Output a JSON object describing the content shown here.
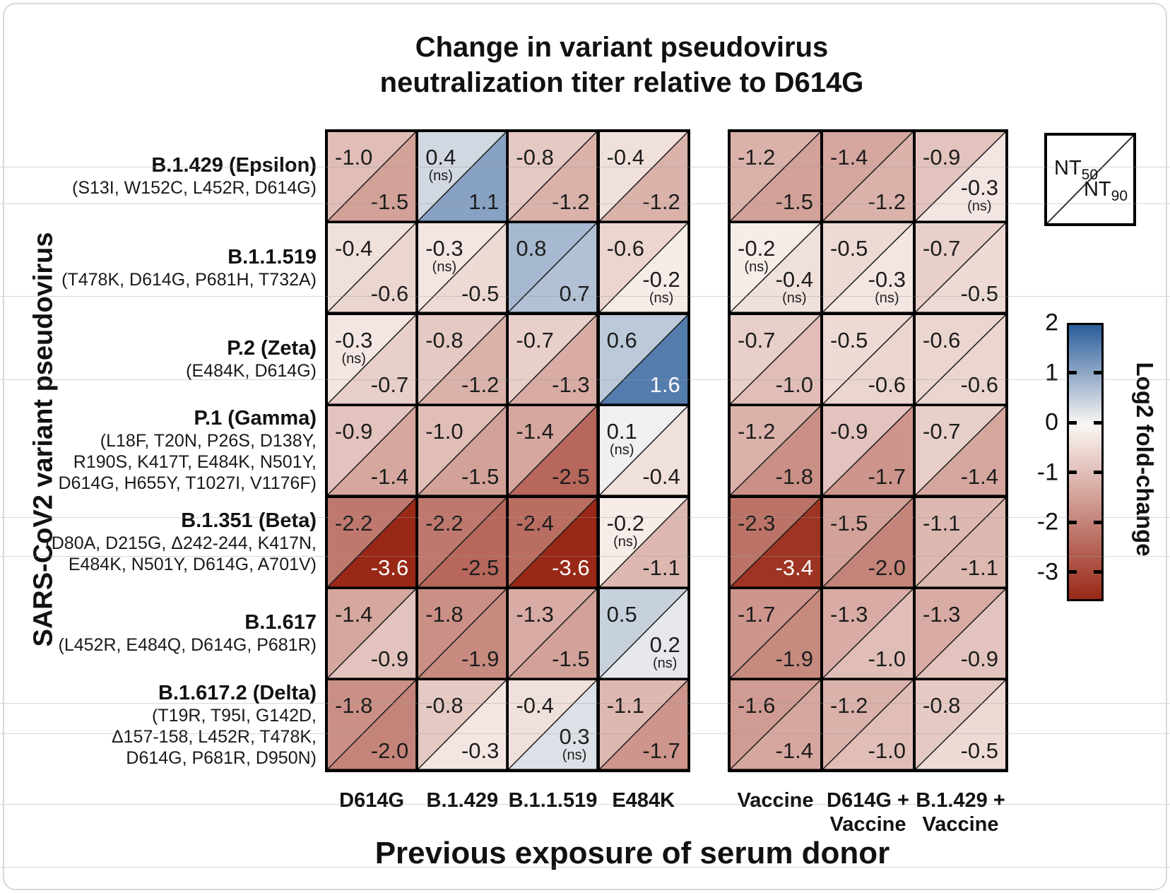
{
  "title": {
    "line1": "Change in variant pseudovirus",
    "line2": "neutralization titer relative to D614G"
  },
  "axes": {
    "y_label": "SARS-CoV2 variant pseudovirus",
    "x_label": "Previous exposure of serum donor"
  },
  "cell_legend": {
    "top": {
      "prefix": "NT",
      "sub": "50"
    },
    "bottom": {
      "prefix": "NT",
      "sub": "90"
    }
  },
  "colorbar": {
    "label": "Log2 fold-change",
    "ticks": [
      "2",
      "1",
      "0",
      "-1",
      "-2",
      "-3"
    ],
    "vmax": 2,
    "vmin": -3.5,
    "color_positive": "#2a5d9b",
    "color_mid": "#fbf7f4",
    "color_negative": "#992817"
  },
  "chart_data": {
    "type": "heatmap",
    "cell_semantics": {
      "upper_left": "NT50 log2 fold-change",
      "lower_right": "NT90 log2 fold-change",
      "ns": "not significant"
    },
    "columns": [
      {
        "lines": [
          "D614G"
        ]
      },
      {
        "lines": [
          "B.1.429"
        ]
      },
      {
        "lines": [
          "B.1.1.519"
        ]
      },
      {
        "lines": [
          "E484K"
        ]
      },
      {
        "lines": [
          "Vaccine"
        ]
      },
      {
        "lines": [
          "D614G +",
          "Vaccine"
        ]
      },
      {
        "lines": [
          "B.1.429 +",
          "Vaccine"
        ]
      }
    ],
    "rows": [
      {
        "variant": "B.1.429 (Epsilon)",
        "mutations": [
          "(S13I, W152C, L452R, D614G)"
        ],
        "cells": [
          {
            "nt50": -1.0,
            "nt90": -1.5
          },
          {
            "nt50": 0.4,
            "nt50_ns": true,
            "nt90": 1.1
          },
          {
            "nt50": -0.8,
            "nt90": -1.2
          },
          {
            "nt50": -0.4,
            "nt90": -1.2
          },
          {
            "nt50": -1.2,
            "nt90": -1.5
          },
          {
            "nt50": -1.4,
            "nt90": -1.2
          },
          {
            "nt50": -0.9,
            "nt90": -0.3,
            "nt90_ns": true
          }
        ]
      },
      {
        "variant": "B.1.1.519",
        "mutations": [
          "(T478K, D614G, P681H, T732A)"
        ],
        "cells": [
          {
            "nt50": -0.4,
            "nt90": -0.6
          },
          {
            "nt50": -0.3,
            "nt50_ns": true,
            "nt90": -0.5
          },
          {
            "nt50": 0.8,
            "nt90": 0.7
          },
          {
            "nt50": -0.6,
            "nt90": -0.2,
            "nt90_ns": true
          },
          {
            "nt50": -0.2,
            "nt50_ns": true,
            "nt90": -0.4,
            "nt90_ns": true
          },
          {
            "nt50": -0.5,
            "nt90": -0.3,
            "nt90_ns": true
          },
          {
            "nt50": -0.7,
            "nt90": -0.5
          }
        ]
      },
      {
        "variant": "P.2 (Zeta)",
        "mutations": [
          "(E484K, D614G)"
        ],
        "cells": [
          {
            "nt50": -0.3,
            "nt50_ns": true,
            "nt90": -0.7
          },
          {
            "nt50": -0.8,
            "nt90": -1.2
          },
          {
            "nt50": -0.7,
            "nt90": -1.3
          },
          {
            "nt50": 0.6,
            "nt90": 1.6
          },
          {
            "nt50": -0.7,
            "nt90": -1.0
          },
          {
            "nt50": -0.5,
            "nt90": -0.6
          },
          {
            "nt50": -0.6,
            "nt90": -0.6
          }
        ]
      },
      {
        "variant": "P.1 (Gamma)",
        "mutations": [
          "(L18F, T20N, P26S, D138Y,",
          "R190S, K417T, E484K, N501Y,",
          "D614G, H655Y, T1027I, V1176F)"
        ],
        "cells": [
          {
            "nt50": -0.9,
            "nt90": -1.4
          },
          {
            "nt50": -1.0,
            "nt90": -1.5
          },
          {
            "nt50": -1.4,
            "nt90": -2.5
          },
          {
            "nt50": 0.1,
            "nt50_ns": true,
            "nt90": -0.4
          },
          {
            "nt50": -1.2,
            "nt90": -1.8
          },
          {
            "nt50": -0.9,
            "nt90": -1.7
          },
          {
            "nt50": -0.7,
            "nt90": -1.4
          }
        ]
      },
      {
        "variant": "B.1.351 (Beta)",
        "mutations": [
          "(D80A, D215G, Δ242-244, K417N,",
          "E484K, N501Y, D614G, A701V)"
        ],
        "cells": [
          {
            "nt50": -2.2,
            "nt90": -3.6
          },
          {
            "nt50": -2.2,
            "nt90": -2.5
          },
          {
            "nt50": -2.4,
            "nt90": -3.6
          },
          {
            "nt50": -0.2,
            "nt50_ns": true,
            "nt90": -1.1
          },
          {
            "nt50": -2.3,
            "nt90": -3.4
          },
          {
            "nt50": -1.5,
            "nt90": -2.0
          },
          {
            "nt50": -1.1,
            "nt90": -1.1
          }
        ]
      },
      {
        "variant": "B.1.617",
        "mutations": [
          "(L452R, E484Q, D614G, P681R)"
        ],
        "cells": [
          {
            "nt50": -1.4,
            "nt90": -0.9
          },
          {
            "nt50": -1.8,
            "nt90": -1.9
          },
          {
            "nt50": -1.3,
            "nt90": -1.5
          },
          {
            "nt50": 0.5,
            "nt90": 0.2,
            "nt90_ns": true
          },
          {
            "nt50": -1.7,
            "nt90": -1.9
          },
          {
            "nt50": -1.3,
            "nt90": -1.0
          },
          {
            "nt50": -1.3,
            "nt90": -0.9
          }
        ]
      },
      {
        "variant": "B.1.617.2 (Delta)",
        "mutations": [
          "(T19R, T95I, G142D,",
          "Δ157-158, L452R, T478K,",
          "D614G, P681R, D950N)"
        ],
        "cells": [
          {
            "nt50": -1.8,
            "nt90": -2.0
          },
          {
            "nt50": -0.8,
            "nt90": -0.3
          },
          {
            "nt50": -0.4,
            "nt90": 0.3,
            "nt90_ns": true
          },
          {
            "nt50": -1.1,
            "nt90": -1.7
          },
          {
            "nt50": -1.6,
            "nt90": -1.4
          },
          {
            "nt50": -1.2,
            "nt90": -1.0
          },
          {
            "nt50": -0.8,
            "nt90": -0.5
          }
        ]
      }
    ]
  }
}
